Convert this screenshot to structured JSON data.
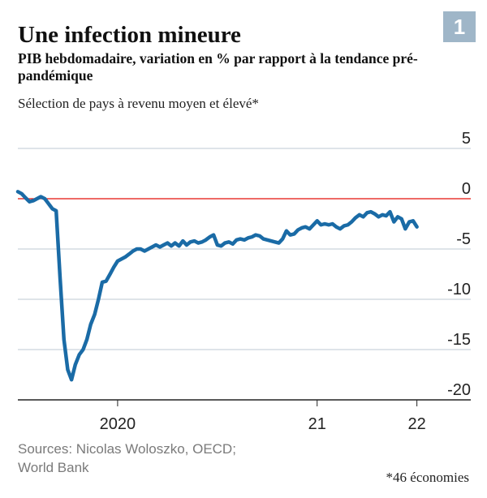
{
  "chart_data": {
    "type": "line",
    "badge": "1",
    "title": "Une infection mineure",
    "subtitle": "PIB hebdomadaire, variation en % par rapport à la tendance pré-pandémique",
    "description": "Sélection de pays à revenu moyen et élevé*",
    "source": "Sources: Nicolas Woloszko, OECD; World Bank",
    "footnote": "*46 économies",
    "x": [
      2020.0,
      2020.019,
      2020.038,
      2020.058,
      2020.077,
      2020.096,
      2020.115,
      2020.135,
      2020.154,
      2020.173,
      2020.192,
      2020.212,
      2020.231,
      2020.25,
      2020.269,
      2020.288,
      2020.308,
      2020.327,
      2020.346,
      2020.365,
      2020.385,
      2020.404,
      2020.423,
      2020.442,
      2020.462,
      2020.481,
      2020.5,
      2020.519,
      2020.538,
      2020.558,
      2020.577,
      2020.596,
      2020.615,
      2020.635,
      2020.654,
      2020.673,
      2020.692,
      2020.712,
      2020.731,
      2020.75,
      2020.769,
      2020.788,
      2020.808,
      2020.827,
      2020.846,
      2020.865,
      2020.885,
      2020.904,
      2020.923,
      2020.942,
      2020.962,
      2020.981,
      2021.0,
      2021.019,
      2021.038,
      2021.058,
      2021.077,
      2021.096,
      2021.115,
      2021.135,
      2021.154,
      2021.173,
      2021.192,
      2021.212,
      2021.231,
      2021.25,
      2021.269,
      2021.288,
      2021.308,
      2021.327,
      2021.346,
      2021.365,
      2021.385,
      2021.404,
      2021.423,
      2021.442,
      2021.462,
      2021.481,
      2021.5,
      2021.519,
      2021.538,
      2021.558,
      2021.577,
      2021.596,
      2021.615,
      2021.635,
      2021.654,
      2021.673,
      2021.692,
      2021.712,
      2021.731,
      2021.75,
      2021.769,
      2021.788,
      2021.808,
      2021.827,
      2021.846,
      2021.865,
      2021.885,
      2021.904,
      2021.923,
      2021.942,
      2021.962,
      2021.981,
      2022.0
    ],
    "series": [
      {
        "color": "#1a6ba6",
        "values": [
          0.7,
          0.5,
          0.1,
          -0.3,
          -0.2,
          0,
          0.2,
          0,
          -0.5,
          -1.0,
          -1.2,
          -8,
          -14,
          -17,
          -18,
          -16.5,
          -15.5,
          -15,
          -14,
          -12.5,
          -11.5,
          -10,
          -8.3,
          -8.2,
          -7.5,
          -6.8,
          -6.2,
          -6,
          -5.8,
          -5.5,
          -5.2,
          -5,
          -5,
          -5.2,
          -5,
          -4.8,
          -4.6,
          -4.8,
          -4.6,
          -4.4,
          -4.7,
          -4.4,
          -4.7,
          -4.2,
          -4.6,
          -4.3,
          -4.2,
          -4.4,
          -4.3,
          -4.1,
          -3.8,
          -3.6,
          -4.6,
          -4.7,
          -4.4,
          -4.3,
          -4.5,
          -4.1,
          -4.0,
          -4.1,
          -3.9,
          -3.8,
          -3.6,
          -3.7,
          -4.0,
          -4.1,
          -4.2,
          -4.3,
          -4.4,
          -4.0,
          -3.2,
          -3.6,
          -3.5,
          -3.1,
          -2.9,
          -2.8,
          -3.0,
          -2.6,
          -2.2,
          -2.6,
          -2.5,
          -2.6,
          -2.5,
          -2.8,
          -3.0,
          -2.7,
          -2.6,
          -2.3,
          -1.9,
          -1.6,
          -1.8,
          -1.4,
          -1.3,
          -1.5,
          -1.8,
          -1.6,
          -1.7,
          -1.3,
          -2.3,
          -1.8,
          -2.0,
          -3.0,
          -2.3,
          -2.2,
          -2.8
        ]
      }
    ],
    "xlim": [
      2020,
      2022.27
    ],
    "xticks": [
      {
        "value": 2020.5,
        "label": "2020"
      },
      {
        "value": 2021.5,
        "label": "21"
      },
      {
        "value": 2022,
        "label": "22"
      }
    ],
    "ylim": [
      -20,
      5
    ],
    "yticks": [
      5,
      0,
      -5,
      -10,
      -15,
      -20
    ],
    "grid": true,
    "grid_color": "#c9d3dc",
    "zero_line_color": "#e3120b"
  }
}
